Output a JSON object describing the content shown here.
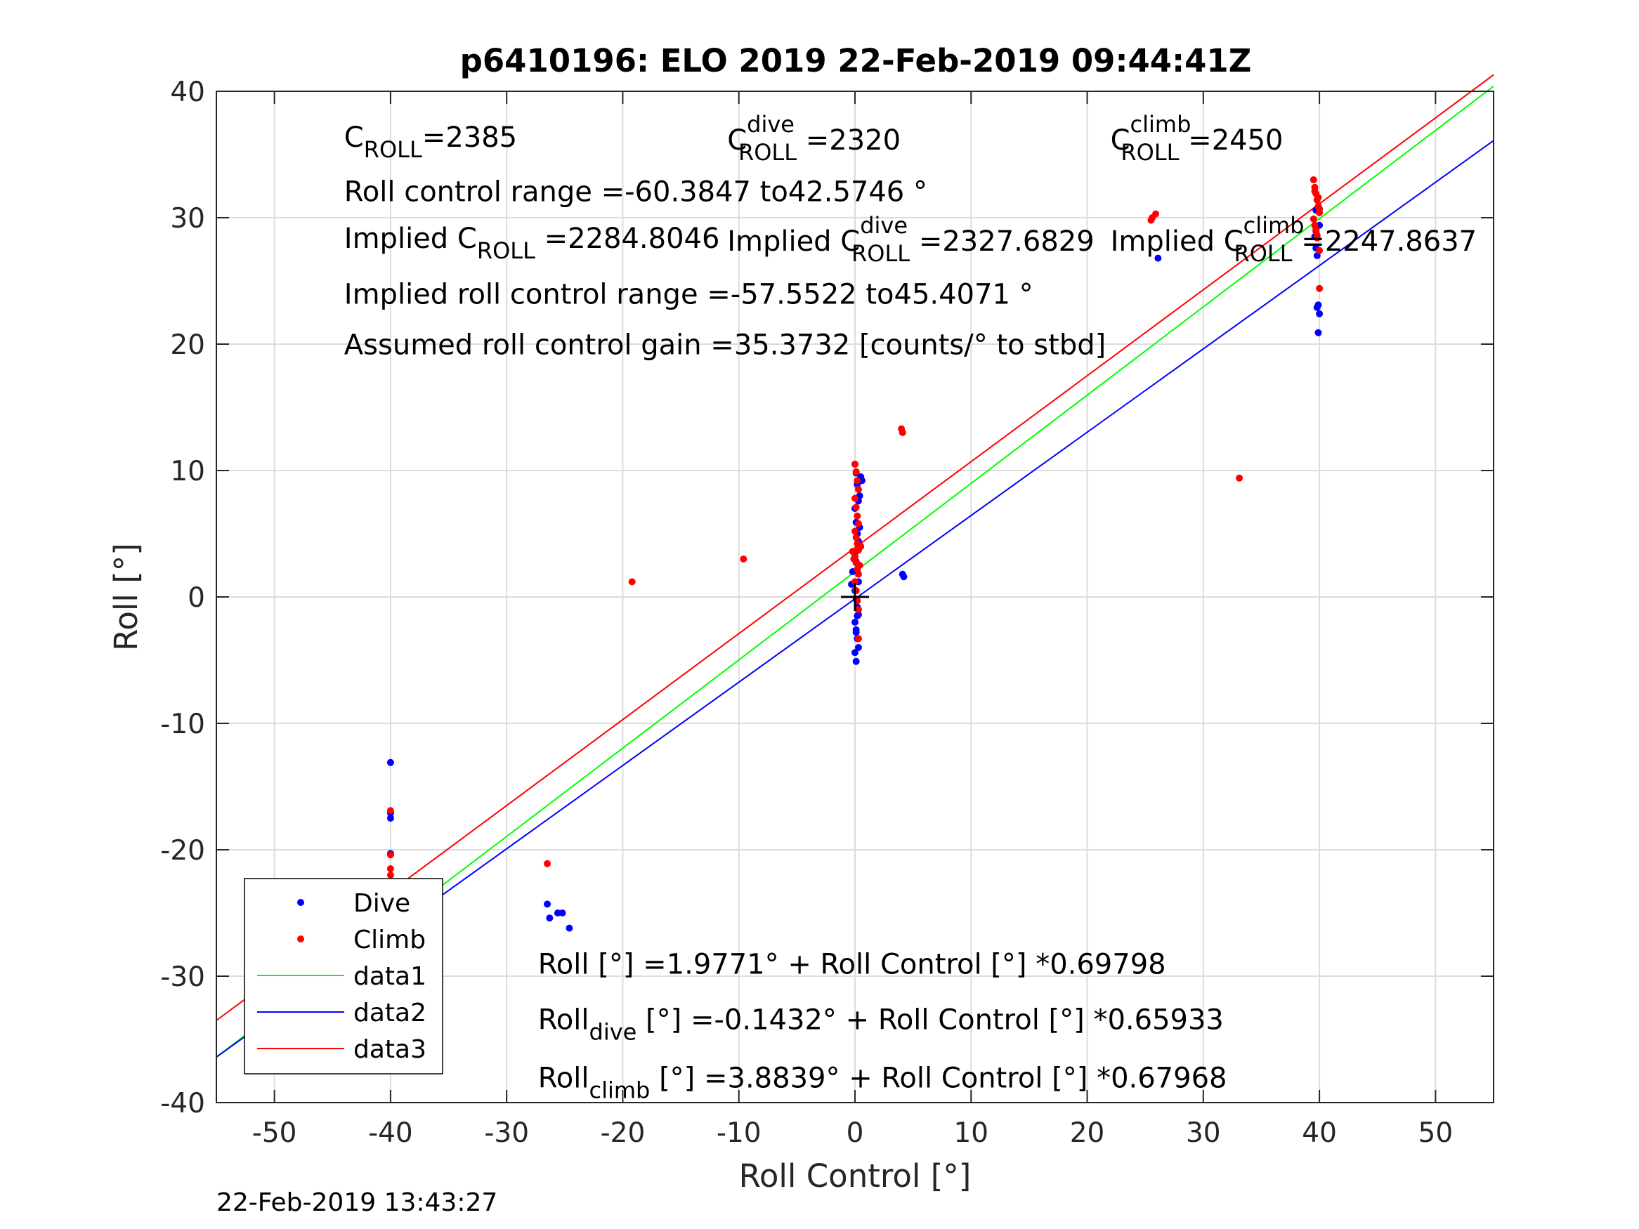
{
  "chart_data": {
    "type": "scatter",
    "title": "p6410196: ELO 2019 22-Feb-2019 09:44:41Z",
    "xlabel": "Roll Control [°]",
    "ylabel": "Roll [°]",
    "xlim": [
      -55,
      55
    ],
    "ylim": [
      -40,
      40
    ],
    "xticks": [
      -50,
      -40,
      -30,
      -20,
      -10,
      0,
      10,
      20,
      30,
      40,
      50
    ],
    "yticks": [
      -40,
      -30,
      -20,
      -10,
      0,
      10,
      20,
      30,
      40
    ],
    "xtick_labels": [
      "-50",
      "-40",
      "-30",
      "-20",
      "-10",
      "0",
      "10",
      "20",
      "30",
      "40",
      "50"
    ],
    "ytick_labels": [
      "-40",
      "-30",
      "-20",
      "-10",
      "0",
      "10",
      "20",
      "30",
      "40"
    ],
    "grid": true,
    "legend_position": "bottom-left",
    "series": [
      {
        "name": "Dive",
        "kind": "points",
        "color": "#0000ff",
        "x": [
          -40,
          -40,
          -40,
          -40,
          -40,
          -40,
          -40,
          -40,
          -40,
          -40,
          -40,
          -40,
          -40,
          -40,
          -40,
          -26.5,
          -26.3,
          -25.6,
          -25.2,
          -24.6,
          0,
          0.1,
          0.2,
          0.3,
          0,
          0.1,
          0.2,
          0.3,
          0,
          0.1,
          0.2,
          0.3,
          0,
          0.1,
          0.2,
          0.3,
          0,
          0.1,
          0.2,
          0.3,
          0,
          0.1,
          0.4,
          0.5,
          0.6,
          0.4,
          -0.2,
          -0.3,
          0.2,
          0.1,
          4.1,
          4.2,
          26.1,
          39.6,
          39.7,
          39.8,
          39.9,
          40,
          39.8,
          39.9,
          40,
          39.7
        ],
        "y": [
          -13.1,
          -17.1,
          -17.5,
          -20.3,
          -25.2,
          -26.1,
          -26.7,
          -27.0,
          -27.5,
          -27.8,
          -28.1,
          -28.4,
          -28.7,
          -26.3,
          -27.2,
          -24.3,
          -25.4,
          -25.0,
          -25.0,
          -26.2,
          10.5,
          9.8,
          8.9,
          7.6,
          7.0,
          5.9,
          5.0,
          4.4,
          3.5,
          2.8,
          2.0,
          1.2,
          0.5,
          -0.2,
          -0.8,
          -1.4,
          -2.0,
          -2.6,
          -3.3,
          -4.0,
          -4.4,
          -5.1,
          8.0,
          9.5,
          9.2,
          5.5,
          2.0,
          1.0,
          -1.5,
          -2.8,
          1.8,
          1.6,
          26.8,
          28.5,
          27.6,
          27.0,
          23.1,
          22.4,
          22.9,
          20.9,
          29.4,
          30.6
        ]
      },
      {
        "name": "Climb",
        "kind": "points",
        "color": "#ff0000",
        "x": [
          -40,
          -40,
          -40,
          -40,
          -40,
          -40,
          -40,
          -40,
          -40,
          -40,
          -40,
          -40,
          -26.5,
          -19.2,
          -9.6,
          0,
          0.1,
          0.2,
          0.3,
          0,
          0.1,
          0.2,
          0.3,
          0,
          0.1,
          0.2,
          0.3,
          0,
          0.1,
          0.2,
          0.3,
          0,
          0.1,
          0.2,
          0.3,
          0.4,
          0.5,
          -0.1,
          -0.2,
          0.3,
          4.0,
          4.1,
          25.6,
          25.9,
          25.5,
          33.1,
          39.5,
          39.6,
          39.7,
          39.8,
          39.9,
          40,
          39.5,
          39.6,
          39.7,
          39.8,
          39.9,
          40,
          39.6,
          39.7,
          39.8,
          40,
          40
        ],
        "y": [
          -16.9,
          -20.4,
          -21.5,
          -22.0,
          -22.5,
          -23.0,
          -23.5,
          -24.0,
          -24.5,
          -25.0,
          -25.6,
          -26.3,
          -21.1,
          1.2,
          3.0,
          10.5,
          9.9,
          9.2,
          8.5,
          7.8,
          7.1,
          6.4,
          5.8,
          5.2,
          4.7,
          4.2,
          3.7,
          3.2,
          2.7,
          2.2,
          1.8,
          1.2,
          0.5,
          -0.3,
          -1.0,
          2.5,
          4.0,
          3.0,
          3.6,
          -3.3,
          13.3,
          13.0,
          30.0,
          30.3,
          29.8,
          9.4,
          33.0,
          32.4,
          31.9,
          31.4,
          30.9,
          30.4,
          29.9,
          29.4,
          28.9,
          28.4,
          31.6,
          30.7,
          32.1,
          29.1,
          28.6,
          27.4,
          24.4
        ]
      },
      {
        "name": "data1",
        "kind": "line",
        "color": "#00ff00",
        "x": [
          -55,
          55
        ],
        "y": [
          -36.4,
          40.4
        ]
      },
      {
        "name": "data2",
        "kind": "line",
        "color": "#0000ff",
        "x": [
          -55,
          55
        ],
        "y": [
          -36.4,
          36.1
        ]
      },
      {
        "name": "data3",
        "kind": "line",
        "color": "#ff0000",
        "x": [
          -55,
          55
        ],
        "y": [
          -33.5,
          41.3
        ]
      }
    ],
    "marker": {
      "x": 0,
      "y": 0,
      "symbol": "+"
    },
    "annotations": [
      {
        "parts": [
          {
            "t": "C"
          },
          {
            "t": "ROLL",
            "pos": "sub"
          },
          {
            "t": "=2385"
          }
        ],
        "x": -44,
        "y": 35.6
      },
      {
        "parts": [
          {
            "t": "C"
          },
          {
            "t": "dive",
            "pos": "sup"
          },
          {
            "t": "ROLL",
            "pos": "sub"
          },
          {
            "t": " =2320"
          }
        ],
        "x": -11,
        "y": 35.4
      },
      {
        "parts": [
          {
            "t": "C"
          },
          {
            "t": "climb",
            "pos": "sup"
          },
          {
            "t": "ROLL",
            "pos": "sub"
          },
          {
            "t": " =2450"
          }
        ],
        "x": 22,
        "y": 35.4
      },
      {
        "parts": [
          {
            "t": "Roll control range =-60.3847 to42.5746 °"
          }
        ],
        "x": -44,
        "y": 31.3
      },
      {
        "parts": [
          {
            "t": "Implied C"
          },
          {
            "t": "ROLL",
            "pos": "sub"
          },
          {
            "t": " =2284.8046"
          }
        ],
        "x": -44,
        "y": 27.6
      },
      {
        "parts": [
          {
            "t": "Implied C"
          },
          {
            "t": "dive",
            "pos": "sup"
          },
          {
            "t": "ROLL",
            "pos": "sub"
          },
          {
            "t": " =2327.6829"
          }
        ],
        "x": -11,
        "y": 27.4
      },
      {
        "parts": [
          {
            "t": "Implied C"
          },
          {
            "t": "climb",
            "pos": "sup"
          },
          {
            "t": "ROLL",
            "pos": "sub"
          },
          {
            "t": " =2247.8637"
          }
        ],
        "x": 22,
        "y": 27.4
      },
      {
        "parts": [
          {
            "t": "Implied roll control range =-57.5522 to45.4071 °"
          }
        ],
        "x": -44,
        "y": 23.2
      },
      {
        "parts": [
          {
            "t": "Assumed roll control gain =35.3732 [counts/° to stbd]"
          }
        ],
        "x": -44,
        "y": 19.2
      },
      {
        "parts": [
          {
            "t": "Roll [°] =1.9771° + Roll Control [°] *0.69798"
          }
        ],
        "x": -27.3,
        "y": -29.8
      },
      {
        "parts": [
          {
            "t": "Roll"
          },
          {
            "t": "dive",
            "pos": "sub"
          },
          {
            "t": " [°] =-0.1432° + Roll Control [°] *0.65933"
          }
        ],
        "x": -27.3,
        "y": -34.2
      },
      {
        "parts": [
          {
            "t": "Roll"
          },
          {
            "t": "climb",
            "pos": "sub"
          },
          {
            "t": " [°] =3.8839° + Roll Control [°] *0.67968"
          }
        ],
        "x": -27.3,
        "y": -38.8
      }
    ],
    "footer": "22-Feb-2019 13:43:27"
  }
}
